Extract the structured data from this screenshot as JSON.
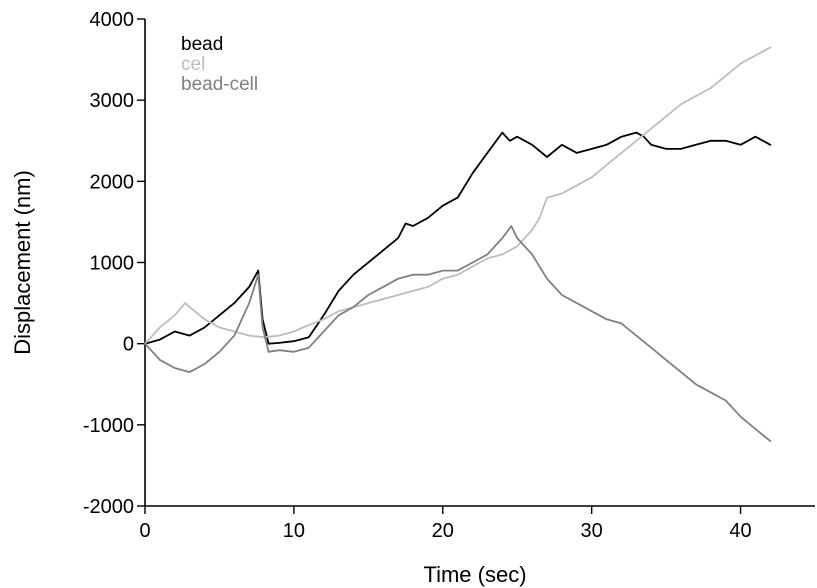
{
  "chart_data": {
    "type": "line",
    "xlabel": "Time (sec)",
    "ylabel": "Displacement (nm)",
    "xlim": [
      0,
      45
    ],
    "ylim": [
      -2000,
      4000
    ],
    "xticks": [
      0,
      10,
      20,
      30,
      40
    ],
    "yticks": [
      -2000,
      -1000,
      0,
      1000,
      2000,
      3000,
      4000
    ],
    "grid": false,
    "legend_position": "top-left",
    "series": [
      {
        "name": "bead",
        "color": "#000000",
        "x": [
          0,
          1,
          2,
          3,
          4,
          5,
          6,
          7,
          7.6,
          7.9,
          8.3,
          9,
          10,
          11,
          12,
          13,
          14,
          15,
          16,
          17,
          17.5,
          18,
          19,
          20,
          21,
          22,
          23,
          24,
          24.5,
          25,
          26,
          27,
          28,
          29,
          30,
          31,
          32,
          33,
          33.5,
          34,
          35,
          36,
          37,
          38,
          39,
          40,
          41,
          42
        ],
        "y": [
          0,
          50,
          150,
          100,
          200,
          350,
          500,
          700,
          900,
          300,
          0,
          10,
          30,
          80,
          350,
          650,
          850,
          1000,
          1150,
          1300,
          1480,
          1450,
          1550,
          1700,
          1800,
          2100,
          2350,
          2600,
          2500,
          2550,
          2450,
          2300,
          2450,
          2350,
          2400,
          2450,
          2550,
          2600,
          2550,
          2450,
          2400,
          2400,
          2450,
          2500,
          2500,
          2450,
          2550,
          2450
        ]
      },
      {
        "name": "cel",
        "color": "#bdbdbd",
        "x": [
          0,
          1,
          2,
          2.7,
          3,
          4,
          5,
          6,
          7,
          8,
          9,
          10,
          11,
          12,
          13,
          14,
          15,
          16,
          17,
          18,
          19,
          20,
          21,
          22,
          23,
          24,
          25,
          26,
          26.5,
          27,
          28,
          29,
          30,
          31,
          32,
          33,
          34,
          35,
          36,
          37,
          38,
          39,
          40,
          41,
          42
        ],
        "y": [
          0,
          200,
          350,
          500,
          450,
          300,
          200,
          150,
          100,
          80,
          100,
          150,
          230,
          300,
          400,
          450,
          500,
          550,
          600,
          650,
          700,
          800,
          850,
          950,
          1050,
          1100,
          1200,
          1400,
          1550,
          1800,
          1850,
          1950,
          2050,
          2200,
          2350,
          2500,
          2650,
          2800,
          2950,
          3050,
          3150,
          3300,
          3450,
          3550,
          3650
        ]
      },
      {
        "name": "bead-cell",
        "color": "#808080",
        "x": [
          0,
          1,
          2,
          3,
          4,
          5,
          6,
          7,
          7.6,
          7.9,
          8.3,
          9,
          10,
          11,
          12,
          13,
          14,
          15,
          16,
          17,
          18,
          19,
          20,
          21,
          22,
          23,
          24,
          24.6,
          25,
          26,
          27,
          28,
          29,
          30,
          31,
          32,
          33,
          34,
          35,
          36,
          37,
          38,
          39,
          40,
          41,
          42
        ],
        "y": [
          0,
          -200,
          -300,
          -350,
          -250,
          -100,
          100,
          500,
          850,
          200,
          -100,
          -80,
          -100,
          -50,
          150,
          350,
          450,
          600,
          700,
          800,
          850,
          850,
          900,
          900,
          1000,
          1100,
          1300,
          1450,
          1300,
          1100,
          800,
          600,
          500,
          400,
          300,
          250,
          100,
          -50,
          -200,
          -350,
          -500,
          -600,
          -700,
          -900,
          -1050,
          -1200
        ]
      }
    ]
  }
}
